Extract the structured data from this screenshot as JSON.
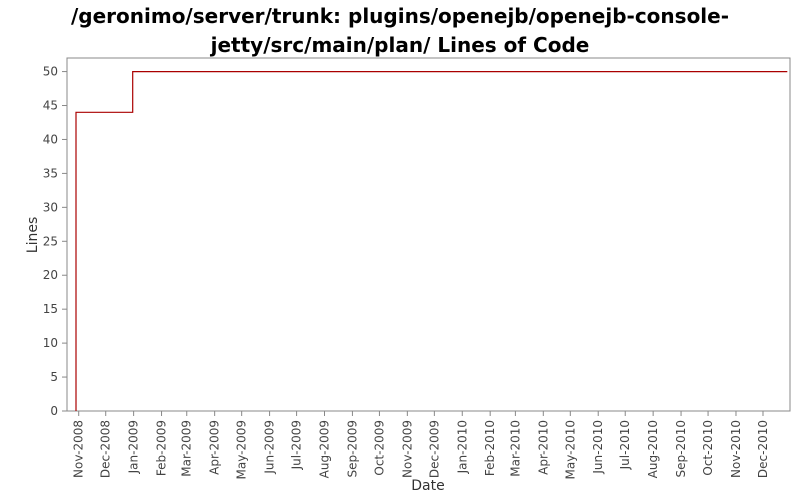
{
  "chart_data": {
    "type": "line",
    "title_line1": "/geronimo/server/trunk: plugins/openejb/openejb-console-",
    "title_line2": "jetty/src/main/plan/ Lines of Code",
    "xlabel": "Date",
    "ylabel": "Lines",
    "ylim": [
      0,
      52
    ],
    "yticks": [
      0,
      5,
      10,
      15,
      20,
      25,
      30,
      35,
      40,
      45,
      50
    ],
    "xlim": [
      "2008-10-19",
      "2010-12-31"
    ],
    "xticks": [
      {
        "date": "2008-11-01",
        "label": "Nov-2008"
      },
      {
        "date": "2008-12-01",
        "label": "Dec-2008"
      },
      {
        "date": "2009-01-01",
        "label": "Jan-2009"
      },
      {
        "date": "2009-02-01",
        "label": "Feb-2009"
      },
      {
        "date": "2009-03-01",
        "label": "Mar-2009"
      },
      {
        "date": "2009-04-01",
        "label": "Apr-2009"
      },
      {
        "date": "2009-05-01",
        "label": "May-2009"
      },
      {
        "date": "2009-06-01",
        "label": "Jun-2009"
      },
      {
        "date": "2009-07-01",
        "label": "Jul-2009"
      },
      {
        "date": "2009-08-01",
        "label": "Aug-2009"
      },
      {
        "date": "2009-09-01",
        "label": "Sep-2009"
      },
      {
        "date": "2009-10-01",
        "label": "Oct-2009"
      },
      {
        "date": "2009-11-01",
        "label": "Nov-2009"
      },
      {
        "date": "2009-12-01",
        "label": "Dec-2009"
      },
      {
        "date": "2010-01-01",
        "label": "Jan-2010"
      },
      {
        "date": "2010-02-01",
        "label": "Feb-2010"
      },
      {
        "date": "2010-03-01",
        "label": "Mar-2010"
      },
      {
        "date": "2010-04-01",
        "label": "Apr-2010"
      },
      {
        "date": "2010-05-01",
        "label": "May-2010"
      },
      {
        "date": "2010-06-01",
        "label": "Jun-2010"
      },
      {
        "date": "2010-07-01",
        "label": "Jul-2010"
      },
      {
        "date": "2010-08-01",
        "label": "Aug-2010"
      },
      {
        "date": "2010-09-01",
        "label": "Sep-2010"
      },
      {
        "date": "2010-10-01",
        "label": "Oct-2010"
      },
      {
        "date": "2010-11-01",
        "label": "Nov-2010"
      },
      {
        "date": "2010-12-01",
        "label": "Dec-2010"
      }
    ],
    "series": [
      {
        "color": "#aa0000",
        "step": true,
        "points": [
          {
            "x": "2008-10-29",
            "y": 0
          },
          {
            "x": "2008-10-29",
            "y": 44
          },
          {
            "x": "2008-12-31",
            "y": 44
          },
          {
            "x": "2008-12-31",
            "y": 50
          },
          {
            "x": "2010-12-28",
            "y": 50
          }
        ]
      }
    ],
    "grid": false
  }
}
